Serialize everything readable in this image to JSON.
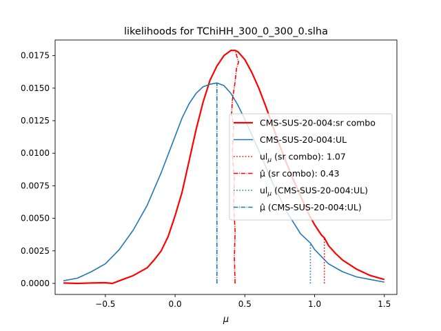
{
  "chart_data": {
    "type": "line",
    "title": "likelihoods for TChiHH_300_0_300_0.slha",
    "xlabel": "μ",
    "ylabel": "",
    "xlim": [
      -0.86,
      1.59
    ],
    "ylim": [
      -0.00085,
      0.0187
    ],
    "xticks": [
      -0.5,
      0.0,
      0.5,
      1.0,
      1.5
    ],
    "xtick_labels": [
      "−0.5",
      "0.0",
      "0.5",
      "1.0",
      "1.5"
    ],
    "yticks": [
      0.0,
      0.0025,
      0.005,
      0.0075,
      0.01,
      0.0125,
      0.015,
      0.0175
    ],
    "ytick_labels": [
      "0.0000",
      "0.0025",
      "0.0050",
      "0.0075",
      "0.0100",
      "0.0125",
      "0.0150",
      "0.0175"
    ],
    "grid": false,
    "legend_position": "center-right",
    "colors": {
      "red": "#ff0000",
      "blue": "#1f77b4"
    },
    "series": [
      {
        "name": "CMS-SUS-20-004:sr combo",
        "color": "#ff0000",
        "style": "solid",
        "x": [
          -0.8,
          -0.7,
          -0.6,
          -0.5,
          -0.45,
          -0.4,
          -0.3,
          -0.2,
          -0.15,
          -0.1,
          -0.05,
          0.0,
          0.05,
          0.1,
          0.15,
          0.2,
          0.25,
          0.3,
          0.35,
          0.4,
          0.43,
          0.45,
          0.5,
          0.55,
          0.6,
          0.65,
          0.7,
          0.75,
          0.8,
          0.85,
          0.9,
          0.95,
          1.0,
          1.05,
          1.07,
          1.1,
          1.15,
          1.2,
          1.3,
          1.4,
          1.5
        ],
        "y": [
          3e-05,
          0.0,
          3e-05,
          5e-05,
          0.0,
          0.0002,
          0.0006,
          0.0012,
          0.0018,
          0.0025,
          0.0036,
          0.0052,
          0.007,
          0.0094,
          0.0118,
          0.0139,
          0.0156,
          0.0167,
          0.0175,
          0.0179,
          0.0179,
          0.0178,
          0.0172,
          0.0162,
          0.015,
          0.0136,
          0.0121,
          0.0106,
          0.0092,
          0.0079,
          0.0067,
          0.0055,
          0.0045,
          0.0037,
          0.0035,
          0.0029,
          0.0023,
          0.0018,
          0.0011,
          0.0006,
          0.0003
        ]
      },
      {
        "name": "CMS-SUS-20-004:UL",
        "color": "#1f77b4",
        "style": "solid",
        "x": [
          -0.8,
          -0.7,
          -0.6,
          -0.5,
          -0.4,
          -0.3,
          -0.2,
          -0.1,
          0.0,
          0.05,
          0.1,
          0.15,
          0.2,
          0.25,
          0.3,
          0.35,
          0.4,
          0.45,
          0.5,
          0.6,
          0.7,
          0.8,
          0.9,
          0.97,
          1.0,
          1.1,
          1.2,
          1.3,
          1.4,
          1.5
        ],
        "y": [
          0.0002,
          0.0004,
          0.0009,
          0.0015,
          0.0026,
          0.0041,
          0.006,
          0.0085,
          0.0113,
          0.0127,
          0.0138,
          0.0146,
          0.0151,
          0.0153,
          0.0154,
          0.0152,
          0.0146,
          0.0137,
          0.0126,
          0.0102,
          0.0077,
          0.0055,
          0.0038,
          0.0031,
          0.0026,
          0.0015,
          0.0009,
          0.0005,
          0.0003,
          0.0001
        ]
      },
      {
        "name": "ul_μ (sr combo): 1.07",
        "color": "#ff0000",
        "style": "dotted",
        "x": [
          1.07,
          1.07
        ],
        "y": [
          0.0,
          0.0035
        ]
      },
      {
        "name": "μ̂ (sr combo): 0.43",
        "color": "#ff0000",
        "style": "dashdot",
        "x": [
          0.43,
          0.425,
          0.43,
          0.42,
          0.425,
          0.41,
          0.42,
          0.405,
          0.41,
          0.43,
          0.44,
          0.455,
          0.43
        ],
        "y": [
          0.0,
          0.002,
          0.004,
          0.006,
          0.008,
          0.01,
          0.012,
          0.013,
          0.014,
          0.0155,
          0.0165,
          0.017,
          0.0179
        ]
      },
      {
        "name": "ul_μ (CMS-SUS-20-004:UL)",
        "color": "#1f77b4",
        "style": "dotted",
        "x": [
          0.97,
          0.97
        ],
        "y": [
          0.0,
          0.0031
        ]
      },
      {
        "name": "μ̂ (CMS-SUS-20-004:UL)",
        "color": "#1f77b4",
        "style": "dashdot",
        "x": [
          0.3,
          0.3
        ],
        "y": [
          0.0,
          0.0154
        ]
      }
    ],
    "legend": [
      {
        "text": "CMS-SUS-20-004:sr combo",
        "color": "#ff0000",
        "style": "solid",
        "width": 2.2
      },
      {
        "text": "CMS-SUS-20-004:UL",
        "color": "#1f77b4",
        "style": "solid",
        "width": 1.6
      },
      {
        "text": "ul",
        "sub": "μ",
        "rest": " (sr combo): 1.07",
        "color": "#ff0000",
        "style": "dotted",
        "width": 1.6
      },
      {
        "text": "μ̂",
        "rest": " (sr combo): 0.43",
        "color": "#ff0000",
        "style": "dashdot",
        "width": 1.6
      },
      {
        "text": "ul",
        "sub": "μ",
        "rest": " (CMS-SUS-20-004:UL)",
        "color": "#1f77b4",
        "style": "dotted",
        "width": 1.6
      },
      {
        "text": "μ̂",
        "rest": " (CMS-SUS-20-004:UL)",
        "color": "#1f77b4",
        "style": "dashdot",
        "width": 1.6
      }
    ]
  }
}
